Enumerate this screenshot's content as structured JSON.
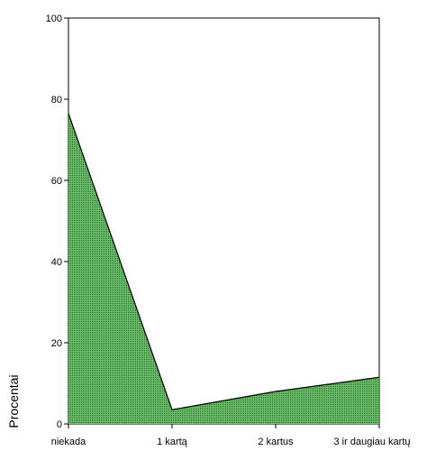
{
  "chart_data": {
    "type": "area",
    "title": "",
    "xlabel": "",
    "ylabel": "Procentai",
    "categories": [
      "niekada",
      "1 kartą",
      "2 kartus",
      "3 ir daugiau kartų"
    ],
    "values": [
      76.5,
      3.5,
      8.0,
      11.5
    ],
    "ylim": [
      0,
      100
    ],
    "yticks": [
      0,
      20,
      40,
      60,
      80,
      100
    ],
    "grid": false,
    "fill_color": "#6fbf6f",
    "line_color": "#000000"
  }
}
